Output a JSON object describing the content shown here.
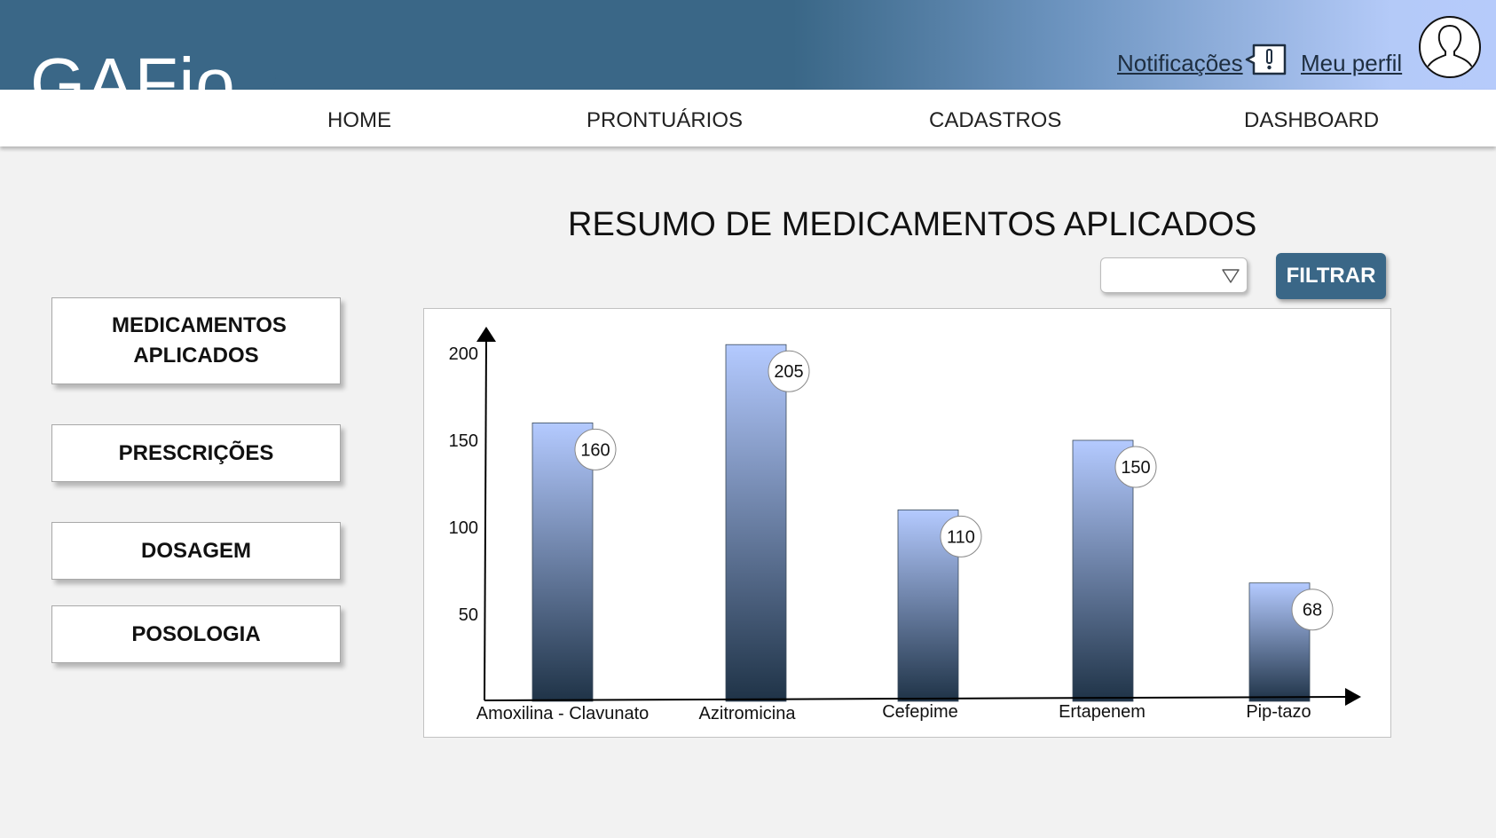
{
  "header": {
    "logo": "GAFio",
    "notifications_label": "Notificações",
    "profile_label": "Meu perfil",
    "icons": {
      "notifications": "notification-alert-icon",
      "profile": "user-avatar-icon"
    }
  },
  "nav": {
    "items": [
      {
        "label": "HOME"
      },
      {
        "label": "PRONTUÁRIOS"
      },
      {
        "label": "CADASTROS"
      },
      {
        "label": "DASHBOARD"
      }
    ]
  },
  "main": {
    "title": "RESUMO DE MEDICAMENTOS APLICADOS",
    "filter": {
      "selected_value": "",
      "button_label": "FILTRAR"
    }
  },
  "sidebar": {
    "items": [
      {
        "label": "MEDICAMENTOS APLICADOS"
      },
      {
        "label": "PRESCRIÇÕES"
      },
      {
        "label": "DOSAGEM"
      },
      {
        "label": "POSOLOGIA"
      }
    ]
  },
  "colors": {
    "brand": "#3a6787",
    "header_gradient_end": "#b6cbfb",
    "bar_top": "#b4caff",
    "bar_bottom": "#1f3347"
  },
  "chart_data": {
    "type": "bar",
    "categories": [
      "Amoxilina - Clavunato",
      "Azitromicina",
      "Cefepime",
      "Ertapenem",
      "Pip-tazo"
    ],
    "values": [
      160,
      205,
      110,
      150,
      68
    ],
    "yticks": [
      50,
      100,
      150,
      200
    ],
    "ylim": [
      0,
      215
    ],
    "data_labels": [
      "160",
      "205",
      "110",
      "150",
      "68"
    ],
    "grid": false
  }
}
